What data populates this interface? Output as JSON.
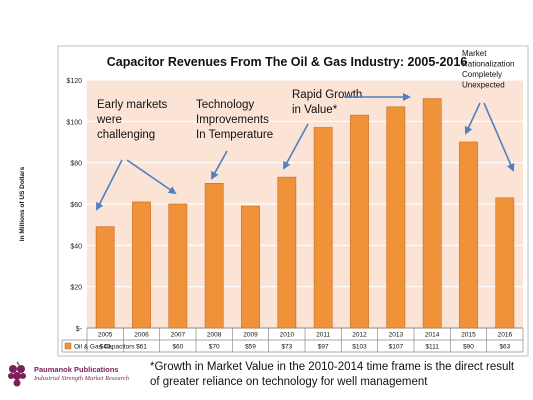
{
  "chart_data": {
    "type": "bar",
    "title": "Capacitor Revenues From The Oil & Gas Industry: 2005-2016",
    "ylabel": "In Millions of US Dollars",
    "xlabel": "",
    "categories": [
      "2005",
      "2006",
      "2007",
      "2008",
      "2009",
      "2010",
      "2011",
      "2012",
      "2013",
      "2014",
      "2015",
      "2016"
    ],
    "series": [
      {
        "name": "Oil & Gas Capacitors",
        "values": [
          49,
          61,
          60,
          70,
          59,
          73,
          97,
          103,
          107,
          111,
          90,
          63
        ],
        "labels": [
          "$49",
          "$61",
          "$60",
          "$70",
          "$59",
          "$73",
          "$97",
          "$103",
          "$107",
          "$111",
          "$90",
          "$63"
        ]
      }
    ],
    "ylim": [
      0,
      120
    ],
    "ytick_values": [
      0,
      20,
      40,
      60,
      80,
      100,
      120
    ],
    "ytick_labels": [
      "$-",
      "$20",
      "$40",
      "$60",
      "$80",
      "$100",
      "$120"
    ],
    "grid": true,
    "legend": "data-table",
    "colors": {
      "bar": "#f0923a",
      "bar_stroke": "#c56a1c",
      "plot_bg": "#fbe3d6",
      "grid": "#ffffff",
      "arrow": "#4f7fc1"
    },
    "annotations": [
      {
        "lines": [
          "Early markets",
          "were",
          "challenging"
        ]
      },
      {
        "lines": [
          "Technology",
          "Improvements",
          "In Temperature"
        ]
      },
      {
        "lines": [
          "Rapid Growth",
          "in Value*"
        ]
      },
      {
        "lines": [
          "Market",
          "Rationalization",
          "Completely",
          "Unexpected"
        ]
      }
    ]
  },
  "footnote": "*Growth in Market Value in the 2010-2014 time frame is the direct result of greater reliance on technology for well management",
  "logo": {
    "name": "Paumanok Publications",
    "tagline": "Industrial Strength Market Research",
    "icon": "grape-cluster-icon"
  }
}
